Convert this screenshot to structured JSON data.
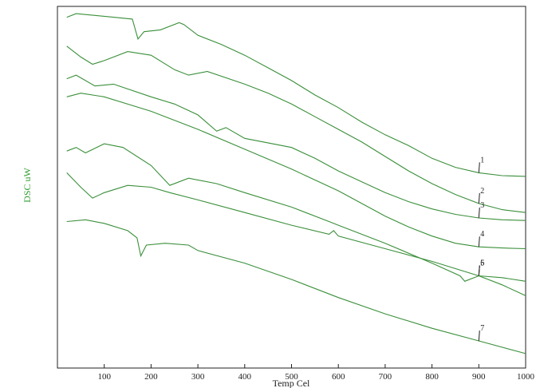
{
  "chart_data": {
    "type": "line",
    "xlabel": "Temp Cel",
    "ylabel": "DSC uW",
    "xlim": [
      0,
      1000
    ],
    "ylim": [
      0,
      100
    ],
    "xticks": [
      100,
      200,
      300,
      400,
      500,
      600,
      700,
      800,
      900,
      1000
    ],
    "grid": false,
    "legend": "none",
    "line_color": "#3a8f3a",
    "series": [
      {
        "name": "1",
        "x": [
          20,
          40,
          80,
          120,
          160,
          172,
          185,
          220,
          260,
          270,
          300,
          350,
          400,
          450,
          500,
          550,
          600,
          650,
          700,
          750,
          800,
          850,
          900,
          950,
          1000
        ],
        "y": [
          97,
          98,
          97.5,
          97,
          96.5,
          91,
          93,
          93.5,
          95.5,
          95,
          92,
          89.5,
          86.5,
          83,
          79.5,
          75.5,
          72,
          68,
          64.5,
          61.5,
          58,
          55.5,
          54,
          53.2,
          53
        ]
      },
      {
        "name": "2",
        "x": [
          20,
          50,
          75,
          100,
          150,
          200,
          250,
          280,
          320,
          400,
          450,
          500,
          550,
          600,
          650,
          700,
          750,
          800,
          850,
          900,
          950,
          1000
        ],
        "y": [
          89,
          86,
          84,
          85,
          87.5,
          86.5,
          82.5,
          81,
          82,
          78.5,
          76,
          73,
          69.5,
          66,
          62.5,
          58.5,
          54.5,
          51,
          48,
          45.5,
          43.8,
          43
        ]
      },
      {
        "name": "3",
        "x": [
          20,
          40,
          80,
          120,
          200,
          250,
          300,
          340,
          360,
          400,
          500,
          550,
          600,
          650,
          700,
          750,
          800,
          850,
          900,
          950,
          1000
        ],
        "y": [
          80,
          81,
          78,
          78.5,
          75,
          73,
          70,
          65.5,
          66.5,
          63.5,
          61,
          58,
          54.5,
          51.5,
          48.5,
          46,
          44,
          42.5,
          41.5,
          41,
          40.8
        ]
      },
      {
        "name": "4",
        "x": [
          20,
          50,
          100,
          200,
          300,
          400,
          500,
          600,
          650,
          700,
          750,
          800,
          850,
          900,
          950,
          1000
        ],
        "y": [
          75,
          76,
          75,
          71,
          66,
          60.5,
          55,
          49,
          45.5,
          42,
          39,
          36.5,
          34.5,
          33.5,
          33.2,
          33
        ]
      },
      {
        "name": "5",
        "x": [
          20,
          40,
          60,
          100,
          140,
          200,
          240,
          280,
          340,
          400,
          500,
          580,
          600,
          700,
          800,
          860,
          870,
          900,
          950,
          1000
        ],
        "y": [
          60,
          61,
          59.5,
          62,
          61,
          56,
          50.5,
          52.5,
          51,
          48.5,
          44.5,
          40.5,
          39.5,
          34.5,
          29,
          25.5,
          24,
          25.5,
          25,
          24
        ]
      },
      {
        "name": "6",
        "x": [
          20,
          50,
          75,
          100,
          150,
          200,
          240,
          300,
          400,
          500,
          580,
          590,
          600,
          700,
          800,
          900,
          950,
          1000
        ],
        "y": [
          54,
          50,
          47,
          48.5,
          50.5,
          50,
          48.5,
          46.5,
          43,
          39.5,
          37,
          38,
          36.5,
          33,
          29.5,
          25.5,
          23,
          20
        ]
      },
      {
        "name": "7",
        "x": [
          20,
          60,
          100,
          150,
          170,
          178,
          190,
          230,
          280,
          300,
          400,
          500,
          600,
          700,
          800,
          900,
          1000
        ],
        "y": [
          40.5,
          41,
          40,
          38,
          36,
          31,
          34,
          34.5,
          34,
          32.5,
          29,
          24.5,
          19.5,
          15,
          11,
          7.5,
          4
        ]
      }
    ],
    "annotations": [
      {
        "text": "1",
        "x": 900
      },
      {
        "text": "2",
        "x": 900
      },
      {
        "text": "3",
        "x": 900
      },
      {
        "text": "4",
        "x": 900
      },
      {
        "text": "5",
        "x": 900
      },
      {
        "text": "6",
        "x": 900
      },
      {
        "text": "7",
        "x": 900
      }
    ]
  }
}
